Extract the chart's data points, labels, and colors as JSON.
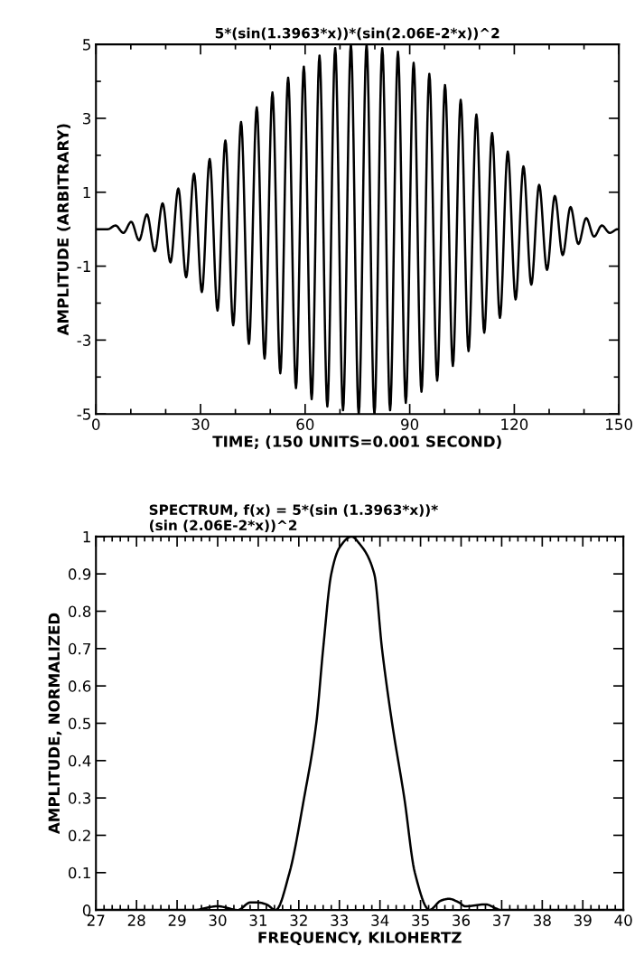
{
  "chart_data": [
    {
      "type": "line",
      "title": "5*(sin(1.3963*x))*(sin(2.06E-2*x))^2",
      "xlabel": "TIME; (150 UNITS=0.001 SECOND)",
      "ylabel": "AMPLITUDE (ARBITRARY)",
      "series": [
        {
          "color": "#000000",
          "x": [
            0,
            1.125,
            3.375,
            5.625,
            7.875,
            10.125,
            12.375,
            14.625,
            16.875,
            19.125,
            21.375,
            23.625,
            25.875,
            28.125,
            30.375,
            32.625,
            34.875,
            37.125,
            39.375,
            41.625,
            43.875,
            46.125,
            48.375,
            50.625,
            52.875,
            55.125,
            57.375,
            59.625,
            61.875,
            64.125,
            66.375,
            68.625,
            70.875,
            73.125,
            75.375,
            77.625,
            79.875,
            82.125,
            84.375,
            86.625,
            88.875,
            91.125,
            93.375,
            95.625,
            97.875,
            100.125,
            102.375,
            104.625,
            106.875,
            109.125,
            111.375,
            113.625,
            115.875,
            118.125,
            120.375,
            122.625,
            124.875,
            127.125,
            129.375,
            131.625,
            133.875,
            136.125,
            138.375,
            140.625,
            142.875,
            145.125,
            147.375,
            149.625,
            150
          ],
          "values": [
            0,
            0.0,
            -0.0,
            0.1,
            -0.1,
            0.2,
            -0.3,
            0.4,
            -0.6,
            0.7,
            -0.9,
            1.1,
            -1.3,
            1.5,
            -1.7,
            1.9,
            -2.2,
            2.4,
            -2.6,
            2.9,
            -3.1,
            3.3,
            -3.5,
            3.7,
            -3.9,
            4.1,
            -4.3,
            4.4,
            -4.6,
            4.7,
            -4.8,
            4.9,
            -4.9,
            5.0,
            -5.0,
            5.0,
            -5.0,
            4.9,
            -4.9,
            4.8,
            -4.7,
            4.5,
            -4.4,
            4.2,
            -4.1,
            3.9,
            -3.7,
            3.5,
            -3.3,
            3.1,
            -2.8,
            2.6,
            -2.4,
            2.1,
            -1.9,
            1.7,
            -1.5,
            1.2,
            -1.1,
            0.9,
            -0.7,
            0.6,
            -0.4,
            0.3,
            -0.2,
            0.1,
            -0.1,
            0.0,
            0
          ]
        }
      ],
      "xlim": [
        0,
        150
      ],
      "xticks": [
        0,
        {
          "value": 10,
          "label": null
        },
        {
          "value": 20,
          "label": null
        },
        30,
        {
          "value": 40,
          "label": null
        },
        {
          "value": 50,
          "label": null
        },
        60,
        {
          "value": 70,
          "label": null
        },
        {
          "value": 80,
          "label": null
        },
        90,
        {
          "value": 100,
          "label": null
        },
        {
          "value": 110,
          "label": null
        },
        120,
        {
          "value": 130,
          "label": null
        },
        {
          "value": 140,
          "label": null
        },
        150
      ],
      "ylim": [
        -5,
        5
      ],
      "yticks": [
        -5,
        {
          "value": -4,
          "label": null
        },
        -3,
        {
          "value": -2,
          "label": null
        },
        -1,
        1,
        {
          "value": 2,
          "label": null
        },
        3,
        {
          "value": 4,
          "label": null
        },
        5
      ],
      "grid": false,
      "legend": false,
      "marker": "none",
      "line_style": "solid"
    },
    {
      "type": "line",
      "title": "SPECTRUM, f(x) = 5*(sin (1.3963*x))*\n(sin (2.06E-2*x))^2",
      "xlabel": "FREQUENCY, KILOHERTZ",
      "ylabel": "AMPLITUDE, NORMALIZED",
      "series": [
        {
          "color": "#000000",
          "x": [
            27,
            29.4,
            30.0,
            30.5,
            30.8,
            31.0,
            31.2,
            31.43,
            31.77,
            32.13,
            32.43,
            32.6,
            32.8,
            33.0,
            33.3,
            33.5,
            33.86,
            34.05,
            34.3,
            34.6,
            34.86,
            35.22,
            35.5,
            35.7,
            35.95,
            36.1,
            36.6,
            37.0,
            40
          ],
          "values": [
            0,
            0,
            0.01,
            0,
            0.02,
            0.02,
            0.015,
            0,
            0.1,
            0.3,
            0.5,
            0.7,
            0.9,
            0.97,
            1.0,
            0.98,
            0.9,
            0.7,
            0.5,
            0.3,
            0.1,
            0,
            0.025,
            0.03,
            0.02,
            0.01,
            0.015,
            0,
            0
          ]
        }
      ],
      "xlim": [
        27,
        40
      ],
      "xticks": [
        27,
        28,
        29,
        30,
        31,
        32,
        33,
        34,
        35,
        36,
        37,
        38,
        39,
        40
      ],
      "ylim": [
        0,
        1
      ],
      "yticks": [
        0,
        0.1,
        0.2,
        0.3,
        0.4,
        0.5,
        0.6,
        0.7,
        0.8,
        0.9,
        1
      ],
      "grid": false,
      "legend": false,
      "marker": "none",
      "line_style": "solid"
    }
  ]
}
